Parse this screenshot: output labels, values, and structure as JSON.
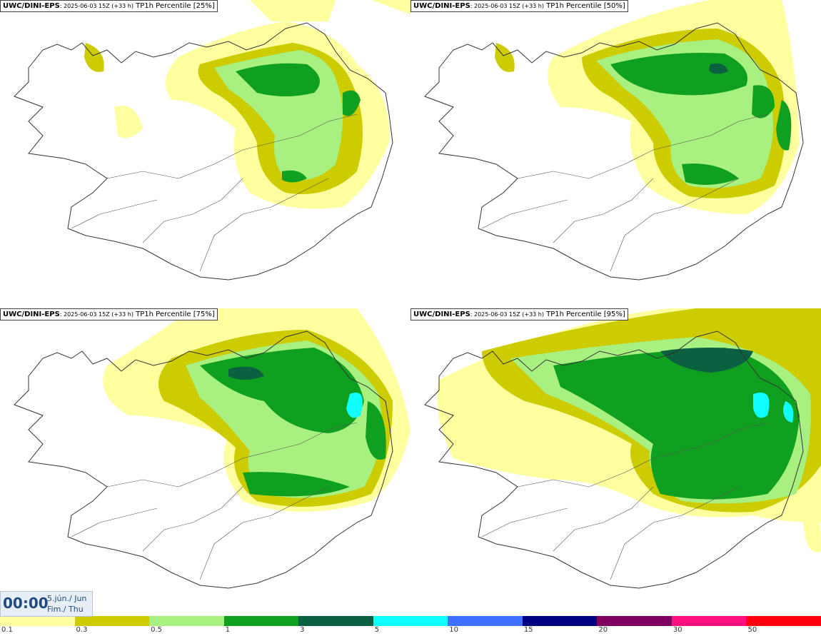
{
  "panels": [
    {
      "source": "UWC/DINI-EPS",
      "meta": ": 2025-06-03 15Z (+33 h)",
      "label": " TP1h Percentile [25%]"
    },
    {
      "source": "UWC/DINI-EPS",
      "meta": ": 2025-06-03 15Z (+33 h)",
      "label": " TP1h Percentile [50%]"
    },
    {
      "source": "UWC/DINI-EPS",
      "meta": ": 2025-06-03 15Z (+33 h)",
      "label": " TP1h Percentile [75%]"
    },
    {
      "source": "UWC/DINI-EPS",
      "meta": ": 2025-06-03 15Z (+33 h)",
      "label": " TP1h Percentile [95%]"
    }
  ],
  "timestamp": {
    "time": "00:00",
    "date_line1": "5.jún./ Jun",
    "date_line2": "Fim./ Thu"
  },
  "legend": {
    "colors": [
      "#ffffa0",
      "#cccc00",
      "#a8f080",
      "#10a020",
      "#0a6040",
      "#10ffff",
      "#4070ff",
      "#000080",
      "#800060",
      "#ff1080",
      "#ff0010"
    ],
    "ticks": [
      "0.1",
      "0.3",
      "0.5",
      "1",
      "3",
      "5",
      "10",
      "15",
      "20",
      "30",
      "50"
    ]
  }
}
